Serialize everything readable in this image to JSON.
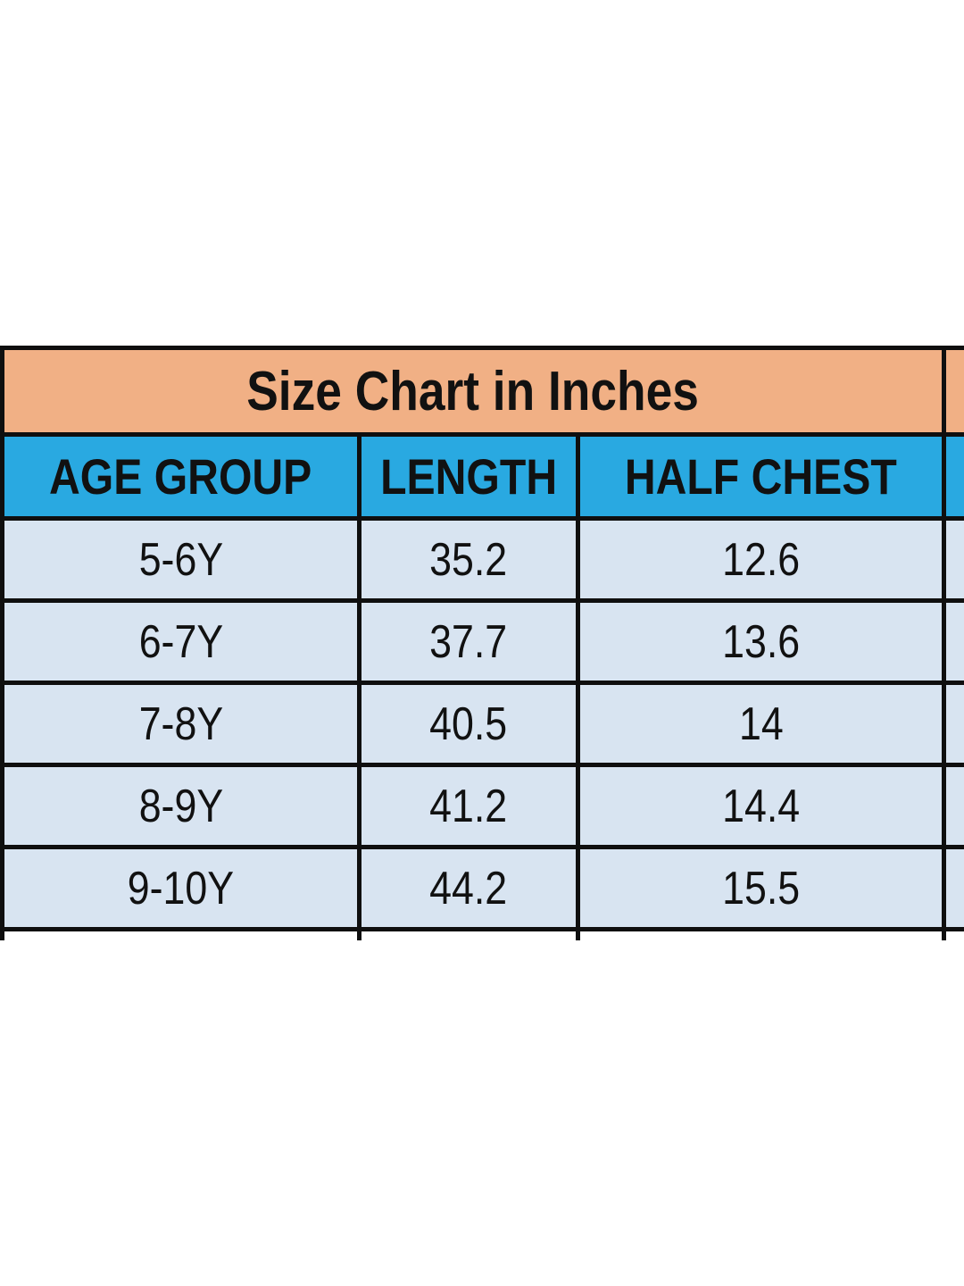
{
  "table": {
    "title": "Size Chart in Inches",
    "headers": [
      "AGE GROUP",
      "LENGTH",
      "HALF CHEST"
    ],
    "rows": [
      {
        "age_group": "5-6Y",
        "length": "35.2",
        "half_chest": "12.6"
      },
      {
        "age_group": "6-7Y",
        "length": "37.7",
        "half_chest": "13.6"
      },
      {
        "age_group": "7-8Y",
        "length": "40.5",
        "half_chest": "14"
      },
      {
        "age_group": "8-9Y",
        "length": "41.2",
        "half_chest": "14.4"
      },
      {
        "age_group": "9-10Y",
        "length": "44.2",
        "half_chest": "15.5"
      }
    ],
    "colors": {
      "title_bg": "#f1b085",
      "header_bg": "#29a9e1",
      "row_bg": "#d8e4f1",
      "border": "#0f0f0f",
      "text": "#111111"
    }
  },
  "chart_data": {
    "type": "table",
    "title": "Size Chart in Inches",
    "units": "inches",
    "columns": [
      "AGE GROUP",
      "LENGTH",
      "HALF CHEST"
    ],
    "rows": [
      [
        "5-6Y",
        35.2,
        12.6
      ],
      [
        "6-7Y",
        37.7,
        13.6
      ],
      [
        "7-8Y",
        40.5,
        14
      ],
      [
        "8-9Y",
        41.2,
        14.4
      ],
      [
        "9-10Y",
        44.2,
        15.5
      ]
    ]
  }
}
